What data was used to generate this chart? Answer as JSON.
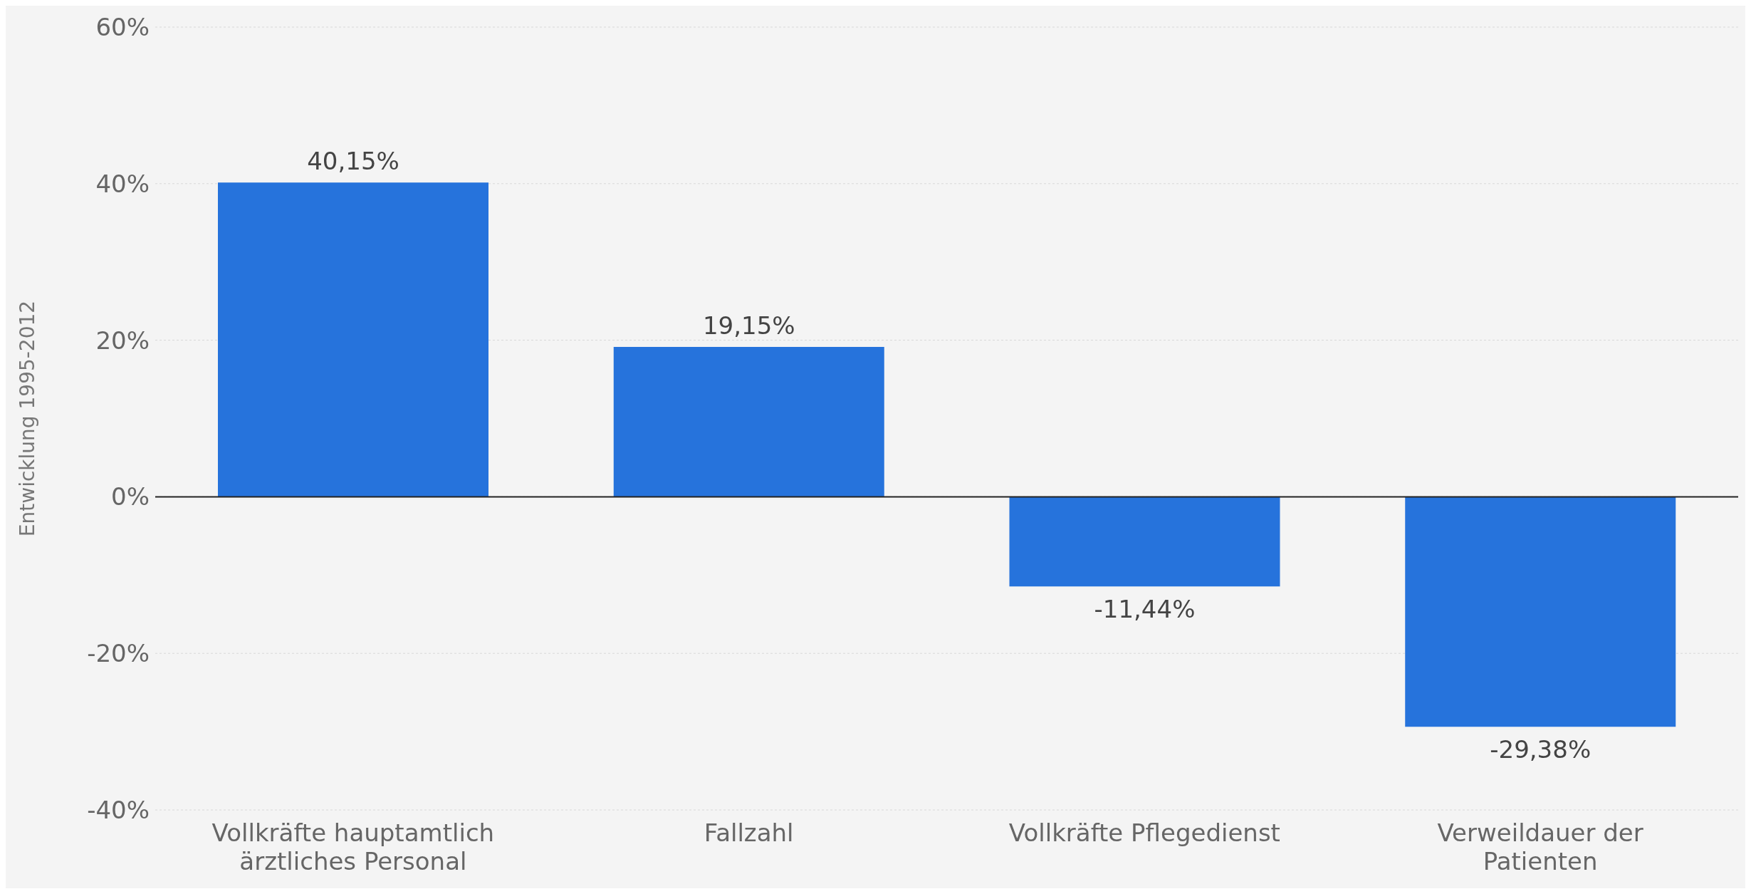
{
  "chart_data": {
    "type": "bar",
    "ylabel": "Entwicklung 1995-2012",
    "categories": [
      "Vollkräfte hauptamtlich ärztliches Personal",
      "Fallzahl",
      "Vollkräfte Pflegedienst",
      "Verweildauer der Patienten"
    ],
    "values": [
      40.15,
      19.15,
      -11.44,
      -29.38
    ],
    "value_labels": [
      "40,15%",
      "19,15%",
      "-11,44%",
      "-29,38%"
    ],
    "color": "#2673dc",
    "ylim": [
      -40,
      60
    ],
    "yticks": [
      {
        "value": -40,
        "label": "-40%"
      },
      {
        "value": -20,
        "label": "-20%"
      },
      {
        "value": 0,
        "label": "0%"
      },
      {
        "value": 20,
        "label": "20%"
      },
      {
        "value": 40,
        "label": "40%"
      },
      {
        "value": 60,
        "label": "60%"
      }
    ],
    "grid": "y"
  }
}
